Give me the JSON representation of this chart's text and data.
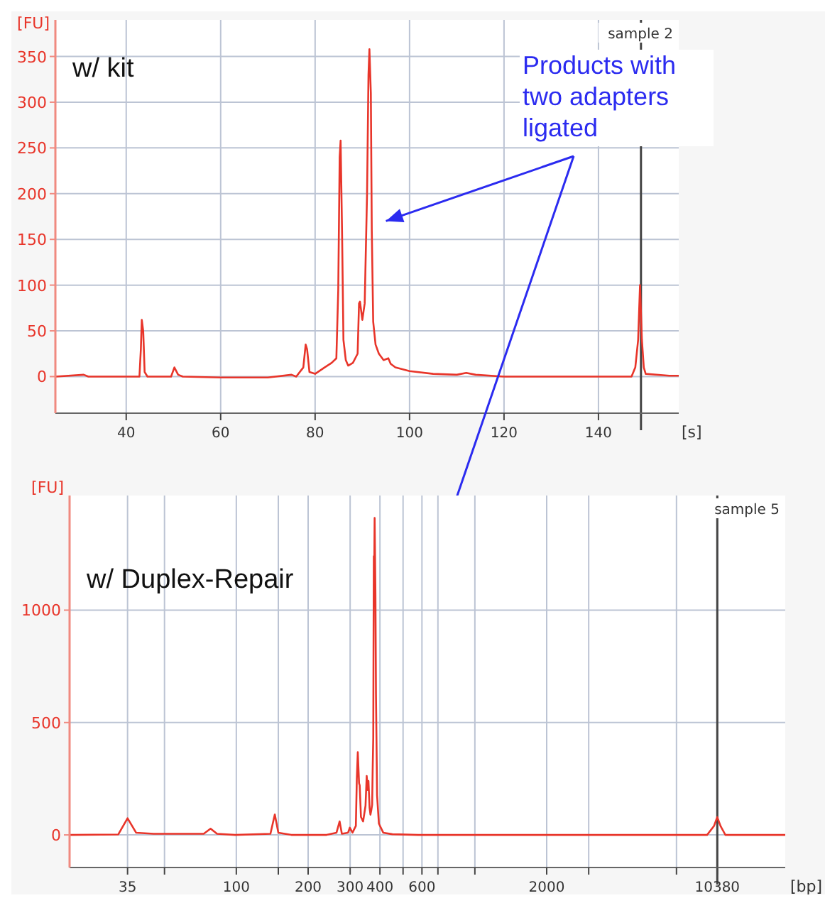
{
  "chart_data": [
    {
      "type": "line",
      "title": "sample 2",
      "xlabel": "[s]",
      "ylabel": "[FU]",
      "xlim": [
        25,
        157
      ],
      "ylim": [
        -40,
        390
      ],
      "xticks": [
        40,
        60,
        80,
        100,
        120,
        140
      ],
      "yticks": [
        0,
        50,
        100,
        150,
        200,
        250,
        300,
        350
      ],
      "grid": true,
      "marker": "none",
      "line_style": "solid",
      "series": [
        {
          "color": "#e8352a",
          "x": [
            25,
            31,
            32,
            42.8,
            43.1,
            43.3,
            43.6,
            43.9,
            44.5,
            49.5,
            50.2,
            51,
            52,
            60,
            70,
            75,
            76,
            77.5,
            78,
            78.3,
            78.8,
            80,
            82,
            83.5,
            84.5,
            84.9,
            85.2,
            85.4,
            85.7,
            86,
            86.5,
            87,
            88,
            89,
            89.3,
            89.5,
            90,
            90.5,
            91,
            91.3,
            91.5,
            91.8,
            92,
            92.3,
            92.8,
            93.5,
            94.5,
            95.5,
            96,
            97,
            100,
            105,
            110,
            112,
            114,
            120,
            130,
            140,
            147,
            147.8,
            148.4,
            148.8,
            149.2,
            149.6,
            150,
            155,
            157
          ],
          "values": [
            0,
            2,
            0,
            0,
            30,
            62,
            50,
            5,
            0,
            0,
            10,
            2,
            0,
            -1,
            -1,
            2,
            0,
            10,
            35,
            30,
            5,
            3,
            10,
            15,
            20,
            95,
            240,
            258,
            160,
            40,
            18,
            12,
            15,
            25,
            80,
            82,
            62,
            80,
            200,
            330,
            358,
            310,
            160,
            60,
            35,
            25,
            18,
            20,
            14,
            10,
            6,
            3,
            2,
            4,
            2,
            0,
            0,
            0,
            0,
            10,
            40,
            100,
            40,
            10,
            3,
            1,
            1
          ]
        }
      ],
      "ref_lines": [
        {
          "axis": "x",
          "value": 149,
          "color": "#444444"
        }
      ],
      "annotations": [
        "w/ kit",
        "Products with two adapters ligated"
      ]
    },
    {
      "type": "line",
      "title": "sample 5",
      "xlabel": "[bp]",
      "ylabel": "[FU]",
      "xlim": [
        20,
        20000
      ],
      "log": "x",
      "ylim": [
        -145,
        1510
      ],
      "xticks": [
        35,
        {
          "value": 50,
          "label": null
        },
        100,
        {
          "value": 150,
          "label": null
        },
        200,
        300,
        400,
        {
          "value": 500,
          "label": null
        },
        600,
        {
          "value": 700,
          "label": null
        },
        {
          "value": 1000,
          "label": null
        },
        2000,
        {
          "value": 3000,
          "label": null
        },
        {
          "value": 7000,
          "label": null
        },
        10380
      ],
      "yticks": [
        0,
        500,
        1000
      ],
      "grid": true,
      "marker": "none",
      "line_style": "solid",
      "series": [
        {
          "color": "#e8352a",
          "x": [
            20,
            32,
            35,
            38,
            45,
            73,
            78,
            83,
            99,
            139,
            145,
            150,
            170,
            239,
            263,
            271,
            277,
            294,
            299,
            307,
            317,
            320,
            323,
            327,
            329,
            333,
            340,
            348,
            352,
            356,
            358,
            362,
            365,
            368,
            371,
            373,
            375,
            377,
            378,
            380,
            383,
            385,
            388,
            389,
            396,
            413,
            451,
            579,
            1818,
            9405,
            10055,
            10380,
            10705,
            11225,
            20000
          ],
          "values": [
            0,
            2,
            74,
            10,
            5,
            5,
            28,
            5,
            0,
            5,
            91,
            10,
            0,
            0,
            10,
            60,
            5,
            10,
            32,
            10,
            40,
            250,
            368,
            230,
            220,
            80,
            60,
            130,
            262,
            200,
            240,
            120,
            90,
            110,
            134,
            300,
            432,
            1240,
            1100,
            1410,
            1070,
            623,
            300,
            177,
            50,
            10,
            3,
            0,
            0,
            0,
            40,
            79,
            40,
            0,
            0
          ]
        }
      ],
      "ref_lines": [
        {
          "axis": "x",
          "value": 10380,
          "color": "#444444"
        }
      ],
      "annotations": [
        "w/ Duplex-Repair"
      ]
    }
  ]
}
